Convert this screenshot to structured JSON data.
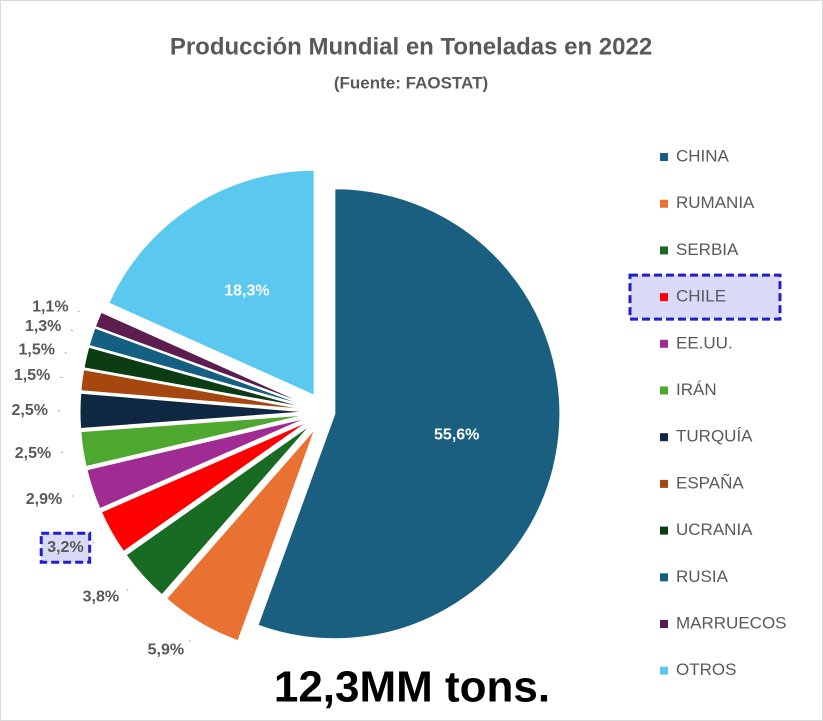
{
  "chart_data": {
    "type": "pie",
    "title": "Producción Mundial en Toneladas en 2022",
    "subtitle": "(Fuente: FAOSTAT)",
    "annotation": "12,3MM tons.",
    "categories": [
      "CHINA",
      "RUMANIA",
      "SERBIA",
      "CHILE",
      "EE.UU.",
      "IRÁN",
      "TURQUÍA",
      "ESPAÑA",
      "UCRANIA",
      "RUSIA",
      "MARRUECOS",
      "OTROS"
    ],
    "values": [
      55.6,
      5.9,
      3.8,
      3.2,
      2.9,
      2.5,
      2.5,
      1.5,
      1.5,
      1.3,
      1.1,
      18.3
    ],
    "value_labels": [
      "55,6%",
      "5,9%",
      "3,8%",
      "3,2%",
      "2,9%",
      "2,5%",
      "2,5%",
      "1,5%",
      "1,5%",
      "1,3%",
      "1,1%",
      "18,3%"
    ],
    "colors": [
      "#1a5f80",
      "#e97132",
      "#196b24",
      "#ff0000",
      "#a02b93",
      "#4ea72e",
      "#0e2841",
      "#a5470f",
      "#0b3c14",
      "#156082",
      "#5b1e4f",
      "#5bc8ef"
    ],
    "legend": "right"
  }
}
